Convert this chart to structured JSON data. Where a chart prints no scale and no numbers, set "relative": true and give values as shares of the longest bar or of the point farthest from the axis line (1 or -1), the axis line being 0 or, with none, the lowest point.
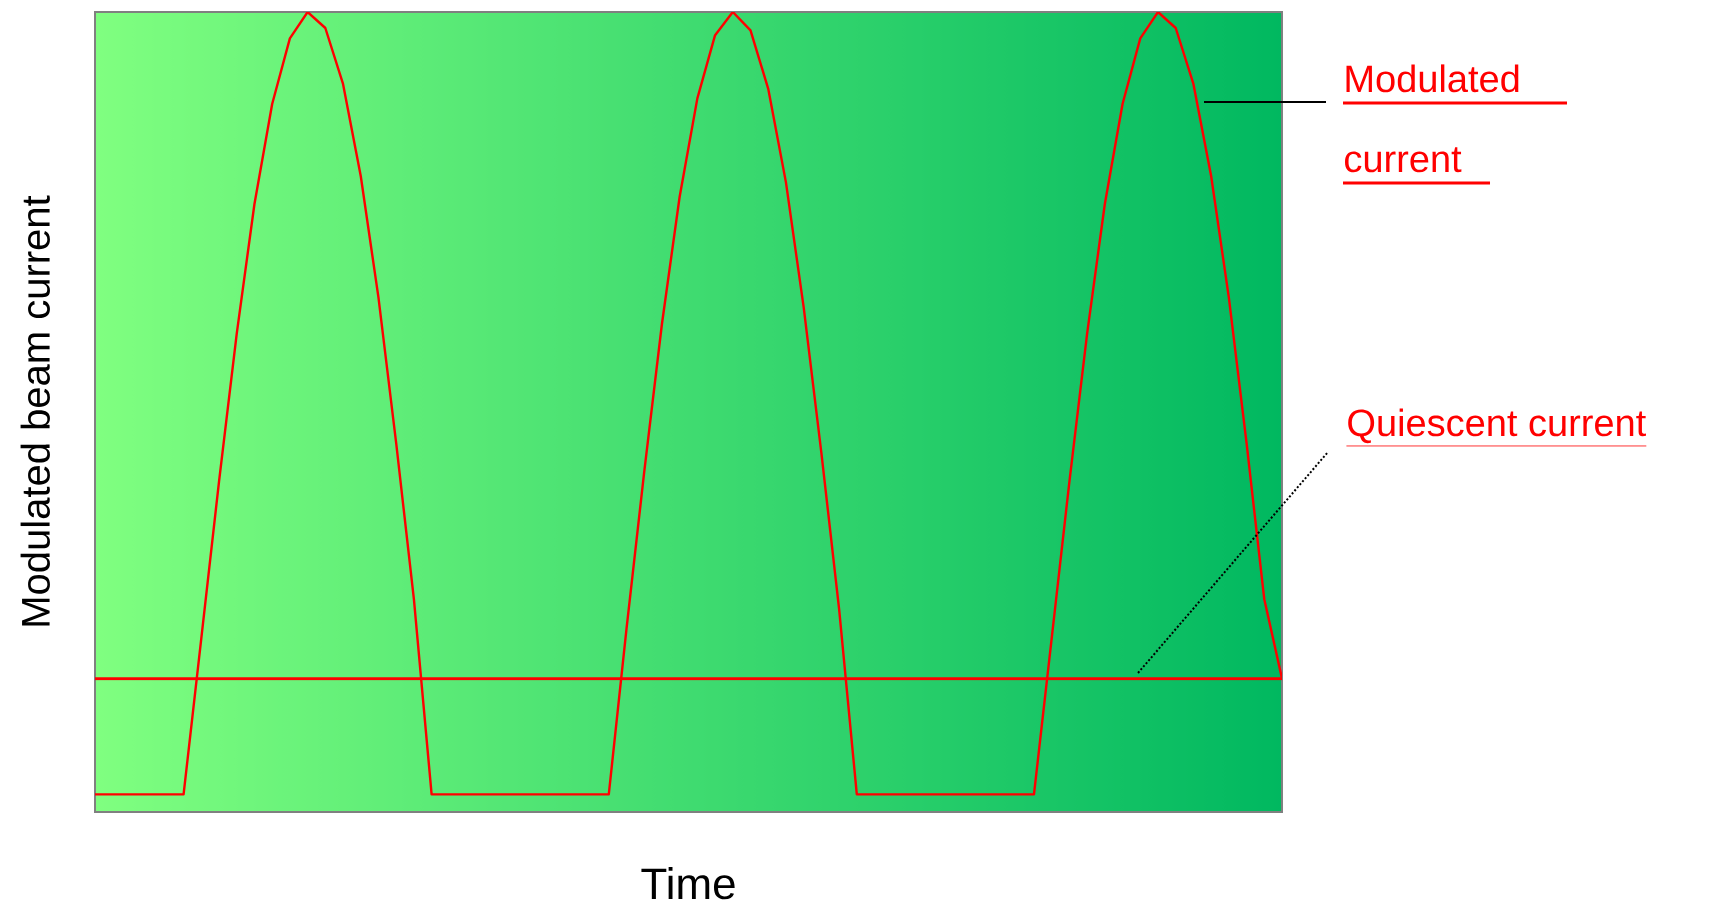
{
  "chart_data": {
    "type": "line",
    "relative": true,
    "xlabel": "Time",
    "ylabel": "Modulated beam current",
    "categories": [
      null,
      null,
      null,
      null,
      null,
      null,
      null,
      null,
      null,
      null,
      null,
      null,
      null,
      null,
      null,
      null,
      null,
      null,
      null,
      null,
      null,
      null,
      null,
      null,
      null,
      null,
      null,
      null,
      null,
      null,
      null,
      null,
      null,
      null,
      null,
      null,
      null,
      null,
      null,
      null,
      null,
      null,
      null,
      null,
      null,
      null,
      null,
      null,
      null,
      null,
      null,
      null,
      null,
      null,
      null,
      null,
      null,
      null,
      null,
      null,
      null,
      null,
      null,
      null,
      null,
      null,
      null,
      null
    ],
    "series": [
      {
        "name": "Modulated current",
        "color": "#ff0000",
        "values": [
          0.022,
          0.022,
          0.022,
          0.022,
          0.022,
          0.022,
          0.217,
          0.413,
          0.598,
          0.76,
          0.885,
          0.967,
          1.0,
          0.98,
          0.91,
          0.795,
          0.643,
          0.461,
          0.266,
          0.022,
          0.022,
          0.022,
          0.022,
          0.022,
          0.022,
          0.022,
          0.022,
          0.022,
          0.022,
          0.022,
          0.229,
          0.425,
          0.61,
          0.769,
          0.892,
          0.971,
          1.0,
          0.977,
          0.904,
          0.787,
          0.631,
          0.449,
          0.254,
          0.022,
          0.022,
          0.022,
          0.022,
          0.022,
          0.022,
          0.022,
          0.022,
          0.022,
          0.022,
          0.022,
          0.217,
          0.413,
          0.598,
          0.76,
          0.885,
          0.967,
          1.0,
          0.98,
          0.91,
          0.795,
          0.643,
          0.461,
          0.266,
          0.1667
        ]
      }
    ],
    "ref_lines": [
      {
        "axis": "y",
        "value": 0.1667,
        "label": "Quiescent current",
        "color": "#ff0000"
      }
    ],
    "legend": false,
    "marker": "none",
    "line_style": "solid"
  }
}
